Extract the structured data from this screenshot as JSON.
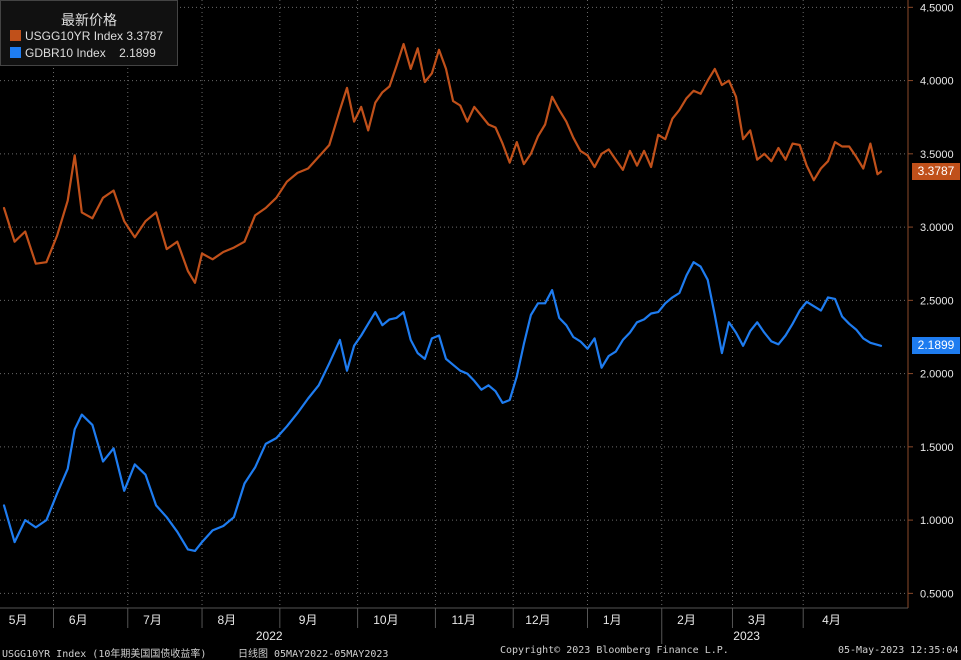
{
  "chart_data": {
    "type": "line",
    "ylim": [
      0.4,
      4.55
    ],
    "y_ticks": [
      "0.5000",
      "1.0000",
      "1.5000",
      "2.0000",
      "2.5000",
      "3.0000",
      "3.5000",
      "4.0000",
      "4.5000"
    ],
    "months": [
      {
        "label": "5月",
        "i": 4
      },
      {
        "label": "6月",
        "i": 21
      },
      {
        "label": "7月",
        "i": 42
      },
      {
        "label": "8月",
        "i": 63
      },
      {
        "label": "9月",
        "i": 86
      },
      {
        "label": "10月",
        "i": 108
      },
      {
        "label": "11月",
        "i": 130
      },
      {
        "label": "12月",
        "i": 151
      },
      {
        "label": "1月",
        "i": 172
      },
      {
        "label": "2月",
        "i": 193
      },
      {
        "label": "3月",
        "i": 213
      },
      {
        "label": "4月",
        "i": 234
      }
    ],
    "years": [
      {
        "label": "2022",
        "i": 75
      },
      {
        "label": "2023",
        "i": 210
      }
    ],
    "grid": true,
    "legend": {
      "title": "最新价格",
      "placement": "top-left"
    },
    "series": [
      {
        "name": "USGG10YR Index",
        "last": "3.3787",
        "color": "#c0501a",
        "points": [
          [
            0,
            3.13
          ],
          [
            3,
            2.9
          ],
          [
            6,
            2.97
          ],
          [
            9,
            2.75
          ],
          [
            12,
            2.76
          ],
          [
            15,
            2.94
          ],
          [
            18,
            3.18
          ],
          [
            20,
            3.49
          ],
          [
            22,
            3.1
          ],
          [
            25,
            3.06
          ],
          [
            28,
            3.2
          ],
          [
            31,
            3.25
          ],
          [
            34,
            3.04
          ],
          [
            37,
            2.93
          ],
          [
            40,
            3.04
          ],
          [
            43,
            3.1
          ],
          [
            46,
            2.85
          ],
          [
            49,
            2.9
          ],
          [
            52,
            2.7
          ],
          [
            54,
            2.62
          ],
          [
            56,
            2.82
          ],
          [
            59,
            2.78
          ],
          [
            62,
            2.83
          ],
          [
            65,
            2.86
          ],
          [
            68,
            2.9
          ],
          [
            71,
            3.08
          ],
          [
            74,
            3.13
          ],
          [
            77,
            3.2
          ],
          [
            80,
            3.31
          ],
          [
            83,
            3.37
          ],
          [
            86,
            3.4
          ],
          [
            89,
            3.48
          ],
          [
            92,
            3.56
          ],
          [
            95,
            3.8
          ],
          [
            97,
            3.95
          ],
          [
            99,
            3.72
          ],
          [
            101,
            3.82
          ],
          [
            103,
            3.66
          ],
          [
            105,
            3.85
          ],
          [
            107,
            3.92
          ],
          [
            109,
            3.96
          ],
          [
            111,
            4.1
          ],
          [
            113,
            4.25
          ],
          [
            115,
            4.08
          ],
          [
            117,
            4.22
          ],
          [
            119,
            3.99
          ],
          [
            121,
            4.05
          ],
          [
            123,
            4.21
          ],
          [
            125,
            4.08
          ],
          [
            127,
            3.86
          ],
          [
            129,
            3.83
          ],
          [
            131,
            3.72
          ],
          [
            133,
            3.82
          ],
          [
            135,
            3.76
          ],
          [
            137,
            3.7
          ],
          [
            139,
            3.68
          ],
          [
            141,
            3.57
          ],
          [
            143,
            3.44
          ],
          [
            145,
            3.58
          ],
          [
            147,
            3.43
          ],
          [
            149,
            3.5
          ],
          [
            151,
            3.62
          ],
          [
            153,
            3.7
          ],
          [
            155,
            3.89
          ],
          [
            157,
            3.8
          ],
          [
            159,
            3.72
          ],
          [
            161,
            3.61
          ],
          [
            163,
            3.52
          ],
          [
            165,
            3.49
          ],
          [
            167,
            3.41
          ],
          [
            169,
            3.5
          ],
          [
            171,
            3.53
          ],
          [
            173,
            3.46
          ],
          [
            175,
            3.39
          ],
          [
            177,
            3.52
          ],
          [
            179,
            3.42
          ],
          [
            181,
            3.52
          ],
          [
            183,
            3.41
          ],
          [
            185,
            3.63
          ],
          [
            187,
            3.6
          ],
          [
            189,
            3.74
          ],
          [
            191,
            3.8
          ],
          [
            193,
            3.88
          ],
          [
            195,
            3.93
          ],
          [
            197,
            3.91
          ],
          [
            199,
            4.0
          ],
          [
            201,
            4.08
          ],
          [
            203,
            3.97
          ],
          [
            205,
            4.0
          ],
          [
            207,
            3.89
          ],
          [
            209,
            3.6
          ],
          [
            211,
            3.66
          ],
          [
            213,
            3.46
          ],
          [
            215,
            3.5
          ],
          [
            217,
            3.45
          ],
          [
            219,
            3.54
          ],
          [
            221,
            3.46
          ],
          [
            223,
            3.57
          ],
          [
            225,
            3.56
          ],
          [
            227,
            3.42
          ],
          [
            229,
            3.32
          ],
          [
            231,
            3.4
          ],
          [
            233,
            3.45
          ],
          [
            235,
            3.58
          ],
          [
            237,
            3.55
          ],
          [
            239,
            3.55
          ],
          [
            241,
            3.48
          ],
          [
            243,
            3.4
          ],
          [
            245,
            3.57
          ],
          [
            247,
            3.36
          ],
          [
            248,
            3.3787
          ]
        ]
      },
      {
        "name": "GDBR10 Index",
        "last": "2.1899",
        "color": "#1e7cf0",
        "points": [
          [
            0,
            1.1
          ],
          [
            3,
            0.85
          ],
          [
            6,
            1.0
          ],
          [
            9,
            0.95
          ],
          [
            12,
            1.0
          ],
          [
            15,
            1.18
          ],
          [
            18,
            1.35
          ],
          [
            20,
            1.62
          ],
          [
            22,
            1.72
          ],
          [
            25,
            1.65
          ],
          [
            28,
            1.4
          ],
          [
            31,
            1.49
          ],
          [
            34,
            1.2
          ],
          [
            37,
            1.38
          ],
          [
            40,
            1.31
          ],
          [
            43,
            1.1
          ],
          [
            46,
            1.02
          ],
          [
            49,
            0.92
          ],
          [
            52,
            0.8
          ],
          [
            54,
            0.79
          ],
          [
            56,
            0.85
          ],
          [
            59,
            0.93
          ],
          [
            62,
            0.96
          ],
          [
            65,
            1.02
          ],
          [
            68,
            1.25
          ],
          [
            71,
            1.36
          ],
          [
            74,
            1.52
          ],
          [
            77,
            1.56
          ],
          [
            80,
            1.64
          ],
          [
            83,
            1.73
          ],
          [
            86,
            1.83
          ],
          [
            89,
            1.92
          ],
          [
            92,
            2.07
          ],
          [
            95,
            2.23
          ],
          [
            97,
            2.02
          ],
          [
            99,
            2.19
          ],
          [
            101,
            2.26
          ],
          [
            103,
            2.34
          ],
          [
            105,
            2.42
          ],
          [
            107,
            2.33
          ],
          [
            109,
            2.37
          ],
          [
            111,
            2.38
          ],
          [
            113,
            2.42
          ],
          [
            115,
            2.23
          ],
          [
            117,
            2.14
          ],
          [
            119,
            2.1
          ],
          [
            121,
            2.24
          ],
          [
            123,
            2.26
          ],
          [
            125,
            2.1
          ],
          [
            127,
            2.06
          ],
          [
            129,
            2.02
          ],
          [
            131,
            2.0
          ],
          [
            133,
            1.95
          ],
          [
            135,
            1.89
          ],
          [
            137,
            1.92
          ],
          [
            139,
            1.88
          ],
          [
            141,
            1.8
          ],
          [
            143,
            1.82
          ],
          [
            145,
            1.98
          ],
          [
            147,
            2.2
          ],
          [
            149,
            2.4
          ],
          [
            151,
            2.48
          ],
          [
            153,
            2.48
          ],
          [
            155,
            2.57
          ],
          [
            157,
            2.38
          ],
          [
            159,
            2.33
          ],
          [
            161,
            2.25
          ],
          [
            163,
            2.22
          ],
          [
            165,
            2.17
          ],
          [
            167,
            2.24
          ],
          [
            169,
            2.04
          ],
          [
            171,
            2.12
          ],
          [
            173,
            2.15
          ],
          [
            175,
            2.23
          ],
          [
            177,
            2.28
          ],
          [
            179,
            2.35
          ],
          [
            181,
            2.37
          ],
          [
            183,
            2.41
          ],
          [
            185,
            2.42
          ],
          [
            187,
            2.48
          ],
          [
            189,
            2.52
          ],
          [
            191,
            2.55
          ],
          [
            193,
            2.67
          ],
          [
            195,
            2.76
          ],
          [
            197,
            2.73
          ],
          [
            199,
            2.64
          ],
          [
            201,
            2.4
          ],
          [
            203,
            2.14
          ],
          [
            205,
            2.35
          ],
          [
            207,
            2.28
          ],
          [
            209,
            2.19
          ],
          [
            211,
            2.29
          ],
          [
            213,
            2.35
          ],
          [
            215,
            2.28
          ],
          [
            217,
            2.22
          ],
          [
            219,
            2.2
          ],
          [
            221,
            2.26
          ],
          [
            223,
            2.34
          ],
          [
            225,
            2.43
          ],
          [
            227,
            2.49
          ],
          [
            229,
            2.46
          ],
          [
            231,
            2.43
          ],
          [
            233,
            2.52
          ],
          [
            235,
            2.51
          ],
          [
            237,
            2.39
          ],
          [
            239,
            2.34
          ],
          [
            241,
            2.3
          ],
          [
            243,
            2.24
          ],
          [
            245,
            2.21
          ],
          [
            248,
            2.1899
          ]
        ]
      }
    ]
  },
  "footer": {
    "series_desc": "USGG10YR Index (10年期美国国债收益率)",
    "period": "日线图 05MAY2022-05MAY2023",
    "copyright": "Copyright© 2023 Bloomberg Finance L.P.",
    "timestamp": "05-May-2023 12:35:04"
  }
}
